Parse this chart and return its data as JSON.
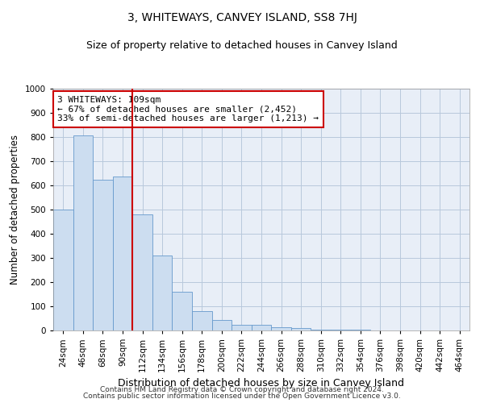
{
  "title": "3, WHITEWAYS, CANVEY ISLAND, SS8 7HJ",
  "subtitle": "Size of property relative to detached houses in Canvey Island",
  "xlabel": "Distribution of detached houses by size in Canvey Island",
  "ylabel": "Number of detached properties",
  "footer1": "Contains HM Land Registry data © Crown copyright and database right 2024.",
  "footer2": "Contains public sector information licensed under the Open Government Licence v3.0.",
  "categories": [
    "24sqm",
    "46sqm",
    "68sqm",
    "90sqm",
    "112sqm",
    "134sqm",
    "156sqm",
    "178sqm",
    "200sqm",
    "222sqm",
    "244sqm",
    "266sqm",
    "288sqm",
    "310sqm",
    "332sqm",
    "354sqm",
    "376sqm",
    "398sqm",
    "420sqm",
    "442sqm",
    "464sqm"
  ],
  "values": [
    500,
    808,
    625,
    637,
    480,
    310,
    160,
    80,
    45,
    22,
    22,
    15,
    10,
    5,
    3,
    2,
    1,
    1,
    1,
    0,
    0
  ],
  "bar_color": "#ccddf0",
  "bar_edge_color": "#6699cc",
  "vline_x_index": 4,
  "vline_color": "#cc0000",
  "annotation_text": "3 WHITEWAYS: 109sqm\n← 67% of detached houses are smaller (2,452)\n33% of semi-detached houses are larger (1,213) →",
  "annotation_box_edge": "#cc0000",
  "annotation_fontsize": 8.0,
  "ylim": [
    0,
    1000
  ],
  "yticks": [
    0,
    100,
    200,
    300,
    400,
    500,
    600,
    700,
    800,
    900,
    1000
  ],
  "axes_bg_color": "#e8eef7",
  "background_color": "#ffffff",
  "grid_color": "#b8c8dc",
  "title_fontsize": 10,
  "subtitle_fontsize": 9,
  "xlabel_fontsize": 9,
  "ylabel_fontsize": 8.5,
  "tick_fontsize": 7.5,
  "footer_fontsize": 6.5
}
